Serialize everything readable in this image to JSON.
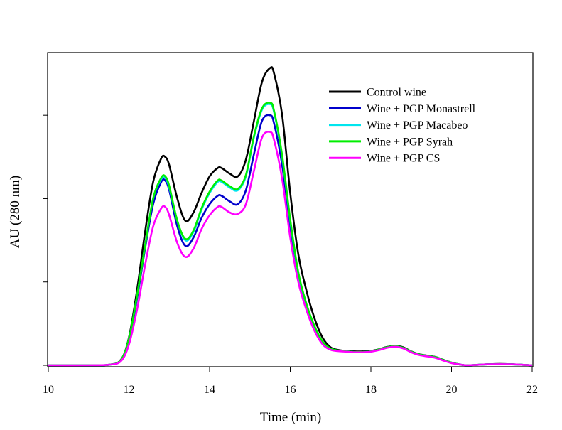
{
  "chart_data": {
    "type": "line",
    "xlabel": "Time (min)",
    "ylabel": "AU (280 nm)",
    "xlim": [
      10,
      22
    ],
    "ylim": [
      0,
      1.1
    ],
    "xticks": [
      "10",
      "12",
      "14",
      "16",
      "18",
      "20",
      "22"
    ],
    "y_tick_labels_shown": false,
    "grid": false,
    "legend_position": "top-right",
    "x": [
      10.0,
      11.0,
      11.5,
      11.8,
      12.0,
      12.2,
      12.4,
      12.6,
      12.8,
      12.9,
      13.0,
      13.2,
      13.4,
      13.6,
      13.8,
      14.0,
      14.2,
      14.3,
      14.5,
      14.7,
      14.9,
      15.1,
      15.3,
      15.5,
      15.6,
      15.8,
      16.0,
      16.2,
      16.4,
      16.6,
      16.8,
      17.0,
      17.2,
      17.4,
      17.6,
      17.8,
      18.0,
      18.2,
      18.4,
      18.6,
      18.8,
      19.0,
      19.2,
      19.4,
      19.6,
      19.8,
      20.0,
      20.2,
      20.4,
      20.8,
      21.2,
      21.6,
      22.0
    ],
    "series": [
      {
        "name": "Control wine",
        "color": "#000000",
        "values": [
          0.0,
          0.0,
          0.002,
          0.02,
          0.1,
          0.27,
          0.48,
          0.66,
          0.745,
          0.75,
          0.72,
          0.6,
          0.52,
          0.55,
          0.62,
          0.68,
          0.71,
          0.71,
          0.69,
          0.68,
          0.74,
          0.88,
          1.02,
          1.07,
          1.05,
          0.9,
          0.62,
          0.4,
          0.27,
          0.17,
          0.1,
          0.065,
          0.055,
          0.052,
          0.05,
          0.05,
          0.052,
          0.058,
          0.066,
          0.07,
          0.065,
          0.05,
          0.04,
          0.035,
          0.03,
          0.02,
          0.01,
          0.003,
          0.0,
          0.003,
          0.005,
          0.003,
          0.0
        ]
      },
      {
        "name": "Wine + PGP Monastrell",
        "color": "#0000cc",
        "values": [
          0.0,
          0.0,
          0.002,
          0.018,
          0.09,
          0.24,
          0.42,
          0.58,
          0.66,
          0.665,
          0.63,
          0.5,
          0.43,
          0.46,
          0.53,
          0.58,
          0.61,
          0.61,
          0.59,
          0.58,
          0.63,
          0.76,
          0.88,
          0.9,
          0.87,
          0.72,
          0.5,
          0.32,
          0.21,
          0.13,
          0.08,
          0.058,
          0.052,
          0.05,
          0.048,
          0.048,
          0.05,
          0.056,
          0.064,
          0.068,
          0.062,
          0.048,
          0.038,
          0.033,
          0.028,
          0.018,
          0.009,
          0.003,
          0.0,
          0.003,
          0.004,
          0.003,
          0.0
        ]
      },
      {
        "name": "Wine + PGP Macabeo",
        "color": "#00e5ee",
        "values": [
          0.0,
          0.0,
          0.002,
          0.019,
          0.095,
          0.25,
          0.43,
          0.6,
          0.67,
          0.675,
          0.64,
          0.52,
          0.45,
          0.48,
          0.56,
          0.62,
          0.66,
          0.66,
          0.64,
          0.63,
          0.68,
          0.82,
          0.92,
          0.94,
          0.91,
          0.75,
          0.52,
          0.33,
          0.22,
          0.14,
          0.085,
          0.06,
          0.053,
          0.05,
          0.048,
          0.048,
          0.05,
          0.057,
          0.065,
          0.069,
          0.063,
          0.049,
          0.039,
          0.034,
          0.029,
          0.019,
          0.01,
          0.003,
          0.0,
          0.003,
          0.004,
          0.003,
          0.0
        ]
      },
      {
        "name": "Wine + PGP Syrah",
        "color": "#00ee00",
        "values": [
          0.0,
          0.0,
          0.002,
          0.019,
          0.095,
          0.25,
          0.43,
          0.6,
          0.675,
          0.68,
          0.645,
          0.52,
          0.455,
          0.485,
          0.565,
          0.625,
          0.665,
          0.665,
          0.645,
          0.635,
          0.685,
          0.825,
          0.925,
          0.945,
          0.915,
          0.755,
          0.525,
          0.335,
          0.222,
          0.142,
          0.086,
          0.06,
          0.053,
          0.05,
          0.048,
          0.048,
          0.05,
          0.057,
          0.065,
          0.069,
          0.063,
          0.049,
          0.039,
          0.034,
          0.029,
          0.019,
          0.01,
          0.003,
          0.0,
          0.003,
          0.004,
          0.003,
          0.0
        ]
      },
      {
        "name": "Wine + PGP CS",
        "color": "#ff00ff",
        "values": [
          0.0,
          0.0,
          0.002,
          0.015,
          0.075,
          0.2,
          0.36,
          0.5,
          0.565,
          0.57,
          0.54,
          0.44,
          0.39,
          0.42,
          0.49,
          0.54,
          0.57,
          0.57,
          0.55,
          0.545,
          0.58,
          0.7,
          0.82,
          0.84,
          0.81,
          0.67,
          0.46,
          0.3,
          0.2,
          0.125,
          0.076,
          0.056,
          0.051,
          0.049,
          0.047,
          0.047,
          0.049,
          0.055,
          0.063,
          0.067,
          0.061,
          0.047,
          0.037,
          0.032,
          0.027,
          0.017,
          0.008,
          0.003,
          0.0,
          0.003,
          0.004,
          0.003,
          0.0
        ]
      }
    ]
  }
}
